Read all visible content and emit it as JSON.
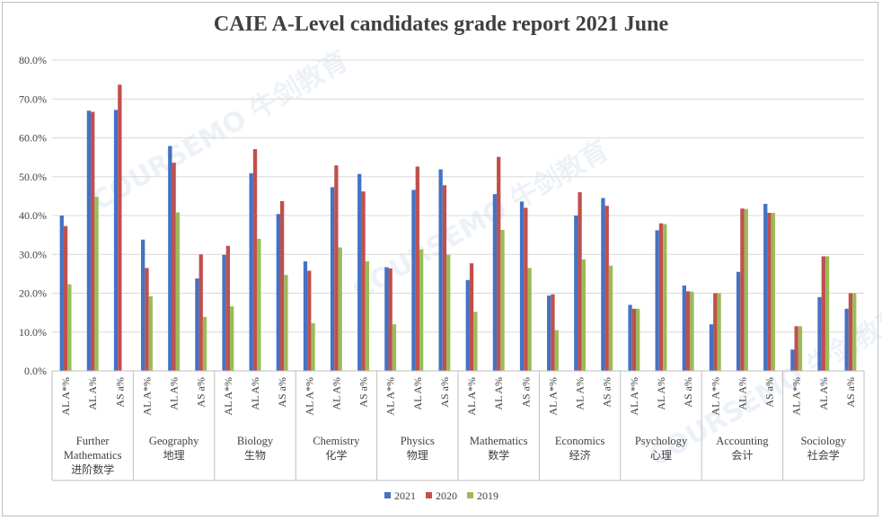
{
  "chart_data": {
    "type": "bar",
    "title": "CAIE A-Level candidates grade report 2021 June",
    "xlabel": "",
    "ylabel": "",
    "ylim": [
      0,
      80
    ],
    "y_ticks": [
      "0.0%",
      "10.0%",
      "20.0%",
      "30.0%",
      "40.0%",
      "50.0%",
      "60.0%",
      "70.0%",
      "80.0%"
    ],
    "grid": true,
    "legend_position": "bottom",
    "sub_categories": [
      "AL A*%",
      "AL A%",
      "AS a%"
    ],
    "subjects": [
      {
        "en": "Further Mathematics",
        "en_lines": [
          "Further",
          "Mathematics"
        ],
        "zh": "进阶数学"
      },
      {
        "en": "Geography",
        "en_lines": [
          "Geography"
        ],
        "zh": "地理"
      },
      {
        "en": "Biology",
        "en_lines": [
          "Biology"
        ],
        "zh": "生物"
      },
      {
        "en": "Chemistry",
        "en_lines": [
          "Chemistry"
        ],
        "zh": "化学"
      },
      {
        "en": "Physics",
        "en_lines": [
          "Physics"
        ],
        "zh": "物理"
      },
      {
        "en": "Mathematics",
        "en_lines": [
          "Mathematics"
        ],
        "zh": "数学"
      },
      {
        "en": "Economics",
        "en_lines": [
          "Economics"
        ],
        "zh": "经济"
      },
      {
        "en": "Psychology",
        "en_lines": [
          "Psychology"
        ],
        "zh": "心理"
      },
      {
        "en": "Accounting",
        "en_lines": [
          "Accounting"
        ],
        "zh": "会计"
      },
      {
        "en": "Sociology",
        "en_lines": [
          "Sociology"
        ],
        "zh": "社会学"
      }
    ],
    "series": [
      {
        "name": "2021",
        "color": "#4472c4",
        "values": [
          40.0,
          67.0,
          67.2,
          33.8,
          57.9,
          23.8,
          29.9,
          50.9,
          40.4,
          28.2,
          47.3,
          50.7,
          26.7,
          46.6,
          51.9,
          23.4,
          45.5,
          43.6,
          19.4,
          40.0,
          44.5,
          17.0,
          36.2,
          22.0,
          12.0,
          25.5,
          43.0,
          5.5,
          19.0,
          16.0
        ]
      },
      {
        "name": "2020",
        "color": "#c0504d",
        "values": [
          37.3,
          66.7,
          73.7,
          26.5,
          53.6,
          30.0,
          32.2,
          57.1,
          43.7,
          25.8,
          52.9,
          46.2,
          26.4,
          52.6,
          47.8,
          27.7,
          55.1,
          42.0,
          19.7,
          46.0,
          42.5,
          16.0,
          38.0,
          20.5,
          20.0,
          41.8,
          40.7,
          11.5,
          29.5,
          20.0
        ]
      },
      {
        "name": "2019",
        "color": "#9bbb59",
        "values": [
          22.3,
          44.8,
          null,
          19.2,
          40.8,
          13.9,
          16.6,
          34.0,
          24.7,
          12.3,
          31.8,
          28.2,
          12.0,
          31.3,
          29.9,
          15.2,
          36.3,
          26.5,
          10.5,
          28.7,
          27.1,
          16.0,
          37.8,
          20.4,
          20.0,
          41.7,
          40.7,
          11.5,
          29.5,
          20.0
        ]
      }
    ]
  },
  "watermark": {
    "text": "COURSEMO 牛剑教育"
  }
}
